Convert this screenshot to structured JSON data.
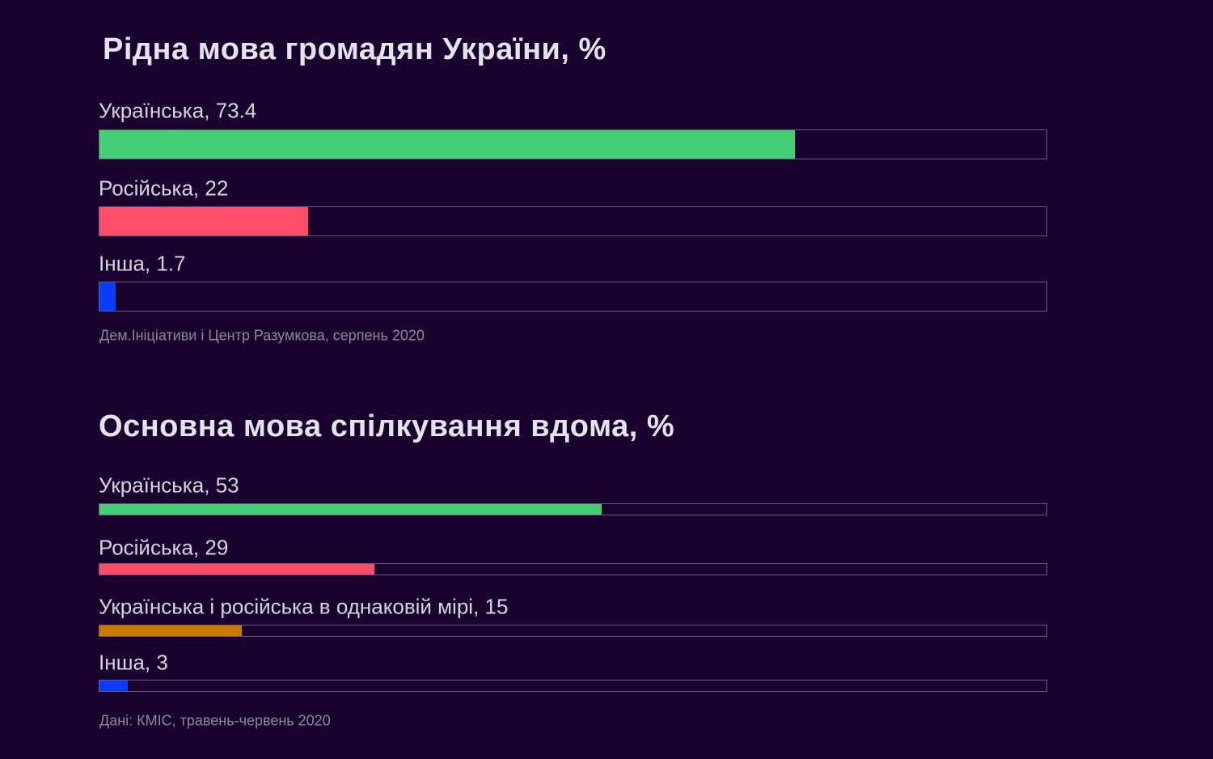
{
  "chart_data": [
    {
      "type": "bar",
      "orientation": "horizontal",
      "title": "Рідна мова громадян України, %",
      "categories": [
        "Українська",
        "Російська",
        "Інша"
      ],
      "values": [
        73.4,
        22,
        1.7
      ],
      "value_labels": [
        "73.4",
        "22",
        "1.7"
      ],
      "colors": [
        "#45cf74",
        "#ff4c68",
        "#0a3cff"
      ],
      "xlim": [
        0,
        100
      ],
      "source": "Дем.Ініціативи і Центр Разумкова, серпень 2020"
    },
    {
      "type": "bar",
      "orientation": "horizontal",
      "title": "Основна мова спілкування вдома, %",
      "categories": [
        "Українська",
        "Російська",
        "Українська і російська в однаковій мірі",
        "Інша"
      ],
      "values": [
        53,
        29,
        15,
        3
      ],
      "value_labels": [
        "53",
        "29",
        "15",
        "3"
      ],
      "colors": [
        "#45cf74",
        "#ff4c68",
        "#cc7a00",
        "#0a3cff"
      ],
      "xlim": [
        0,
        100
      ],
      "source": "Дані: КМІС, травень-червень 2020"
    }
  ]
}
